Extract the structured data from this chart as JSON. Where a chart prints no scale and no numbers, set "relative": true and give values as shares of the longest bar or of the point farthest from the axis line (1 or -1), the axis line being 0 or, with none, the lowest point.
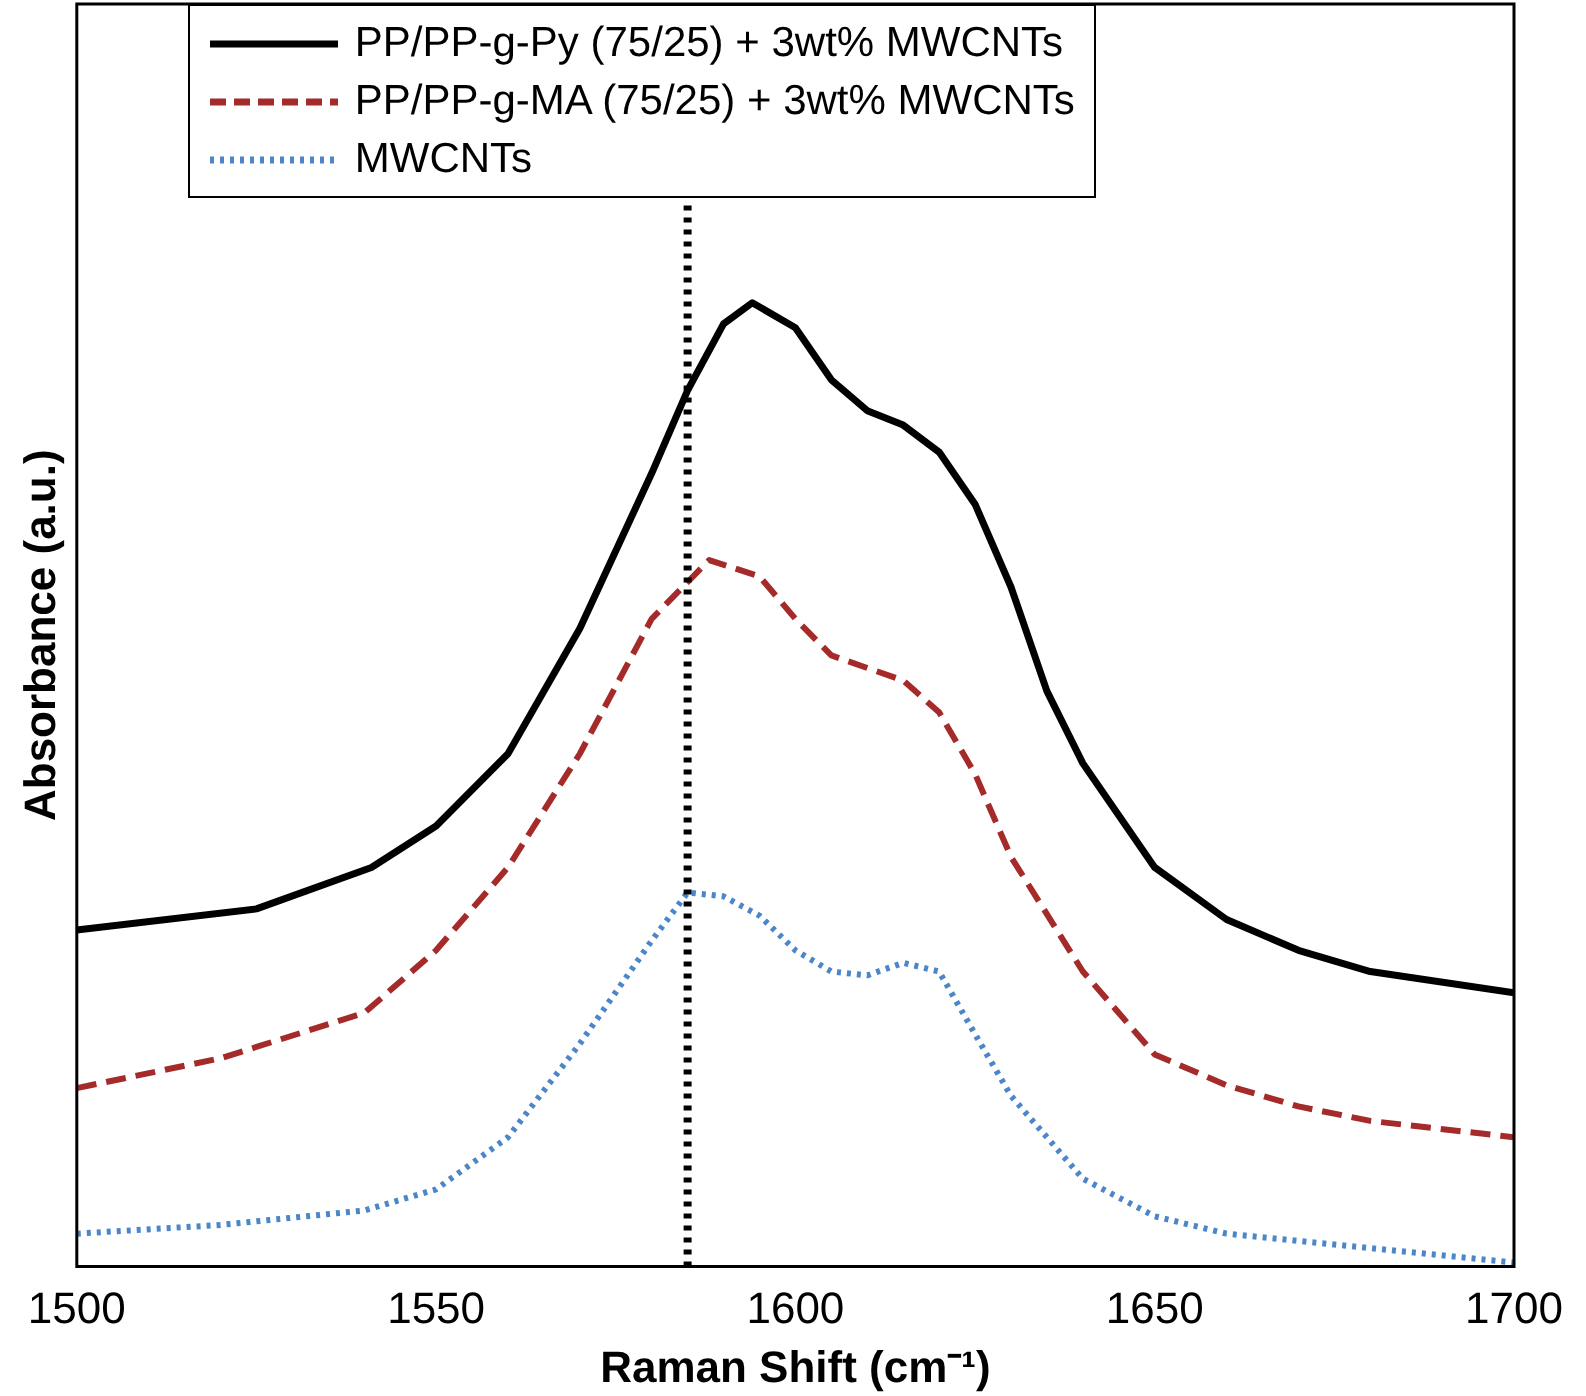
{
  "chart_data": {
    "type": "line",
    "relative": true,
    "xlabel": "Raman Shift (cm⁻¹)",
    "ylabel": "Absorbance (a.u.)",
    "xlim": [
      1500,
      1700
    ],
    "xticks": [
      1500,
      1550,
      1600,
      1650,
      1700
    ],
    "tick_labels": "x",
    "grid": false,
    "legend": "top",
    "marker": "none",
    "series": [
      {
        "name": "PP/PP-g-Py (75/25) + 3wt% MWCNTs",
        "color": "#000000",
        "line_style": "solid",
        "x": [
          1500,
          1525,
          1541,
          1550,
          1560,
          1570,
          1580,
          1585,
          1590,
          1594,
          1600,
          1605,
          1610,
          1615,
          1620,
          1625,
          1630,
          1635,
          1640,
          1650,
          1660,
          1670,
          1680,
          1700
        ],
        "values": [
          0.349,
          0.371,
          0.414,
          0.457,
          0.532,
          0.662,
          0.823,
          0.909,
          0.978,
          1,
          0.974,
          0.92,
          0.888,
          0.873,
          0.845,
          0.791,
          0.705,
          0.597,
          0.522,
          0.414,
          0.36,
          0.328,
          0.306,
          0.284
        ]
      },
      {
        "name": "PP/PP-g-MA (75/25) + 3wt% MWCNTs",
        "color": "#a52a2a",
        "line_style": "dashed",
        "x": [
          1500,
          1520,
          1540,
          1550,
          1560,
          1570,
          1580,
          1588,
          1595,
          1600,
          1605,
          1615,
          1620,
          1625,
          1630,
          1640,
          1650,
          1660,
          1670,
          1680,
          1700
        ],
        "values": [
          0.185,
          0.216,
          0.263,
          0.328,
          0.414,
          0.532,
          0.672,
          0.733,
          0.716,
          0.672,
          0.634,
          0.608,
          0.575,
          0.511,
          0.425,
          0.306,
          0.22,
          0.188,
          0.166,
          0.151,
          0.134
        ]
      },
      {
        "name": "MWCNTs",
        "color": "#4a86c8",
        "line_style": "dotted",
        "x": [
          1500,
          1520,
          1540,
          1550,
          1560,
          1570,
          1580,
          1585,
          1590,
          1595,
          1600,
          1605,
          1610,
          1615,
          1620,
          1625,
          1630,
          1640,
          1650,
          1660,
          1680,
          1700
        ],
        "values": [
          0.034,
          0.043,
          0.058,
          0.08,
          0.134,
          0.231,
          0.338,
          0.388,
          0.384,
          0.364,
          0.328,
          0.306,
          0.302,
          0.315,
          0.306,
          0.241,
          0.177,
          0.091,
          0.052,
          0.034,
          0.019,
          0.004
        ]
      }
    ],
    "ref_lines": [
      {
        "axis": "x",
        "value": 1585,
        "color": "#000000",
        "line_style": "dotted"
      }
    ]
  }
}
